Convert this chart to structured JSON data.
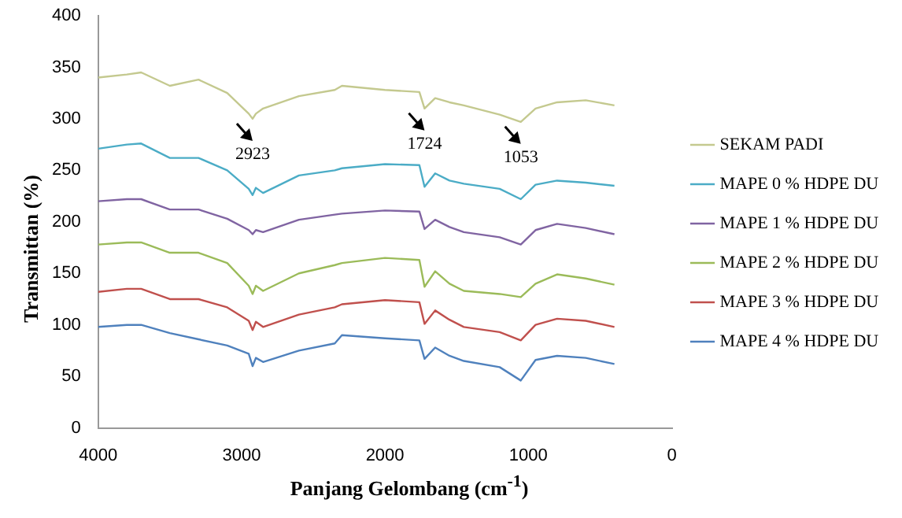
{
  "chart_data": {
    "type": "line",
    "xlabel": "Panjang Gelombang (cm$^{-1}$)",
    "ylabel": "Transmittan  (%)",
    "x": [
      4000,
      3800,
      3700,
      3500,
      3300,
      3100,
      2950,
      2923,
      2900,
      2850,
      2600,
      2350,
      2300,
      2000,
      1760,
      1724,
      1650,
      1550,
      1450,
      1200,
      1053,
      950,
      800,
      600,
      400
    ],
    "xlim": [
      4000,
      0
    ],
    "xticks": [
      4000,
      3000,
      2000,
      1000,
      0
    ],
    "ylim": [
      0,
      400
    ],
    "yticks": [
      0,
      50,
      100,
      150,
      200,
      250,
      300,
      350,
      400
    ],
    "grid": false,
    "legend": "right",
    "marker": "none",
    "line_style": "solid",
    "series": [
      {
        "name": "SEKAM PADI",
        "color": "#c4c98f",
        "values": [
          340,
          343,
          345,
          332,
          338,
          325,
          305,
          300,
          305,
          310,
          322,
          328,
          332,
          328,
          326,
          310,
          320,
          316,
          313,
          304,
          297,
          310,
          316,
          318,
          313
        ]
      },
      {
        "name": "MAPE 0 % HDPE DU",
        "color": "#4bacc6",
        "values": [
          271,
          275,
          276,
          262,
          262,
          250,
          232,
          226,
          233,
          228,
          245,
          250,
          252,
          256,
          255,
          234,
          247,
          240,
          237,
          232,
          222,
          236,
          240,
          238,
          235
        ]
      },
      {
        "name": "MAPE 1 % HDPE DU",
        "color": "#8064a2",
        "values": [
          220,
          222,
          222,
          212,
          212,
          203,
          192,
          188,
          192,
          190,
          202,
          207,
          208,
          211,
          210,
          193,
          202,
          195,
          190,
          185,
          178,
          192,
          198,
          194,
          188
        ]
      },
      {
        "name": "MAPE 2 % HDPE DU",
        "color": "#9bbb59",
        "values": [
          178,
          180,
          180,
          170,
          170,
          160,
          138,
          130,
          138,
          133,
          150,
          158,
          160,
          165,
          163,
          137,
          152,
          140,
          133,
          130,
          127,
          140,
          149,
          145,
          139
        ]
      },
      {
        "name": "MAPE 3 % HDPE DU",
        "color": "#c0504d",
        "values": [
          132,
          135,
          135,
          125,
          125,
          117,
          104,
          95,
          103,
          98,
          110,
          117,
          120,
          124,
          122,
          101,
          114,
          105,
          98,
          93,
          85,
          100,
          106,
          104,
          98
        ]
      },
      {
        "name": "MAPE 4 % HDPE DU",
        "color": "#4f81bd",
        "values": [
          98,
          100,
          100,
          92,
          86,
          80,
          72,
          60,
          68,
          64,
          75,
          82,
          90,
          87,
          85,
          67,
          78,
          70,
          65,
          59,
          46,
          66,
          70,
          68,
          62
        ]
      }
    ],
    "annotations": [
      {
        "text": "2923",
        "x": 2923,
        "y": 300
      },
      {
        "text": "1724",
        "x": 1724,
        "y": 310
      },
      {
        "text": "1053",
        "x": 1053,
        "y": 297
      }
    ]
  }
}
